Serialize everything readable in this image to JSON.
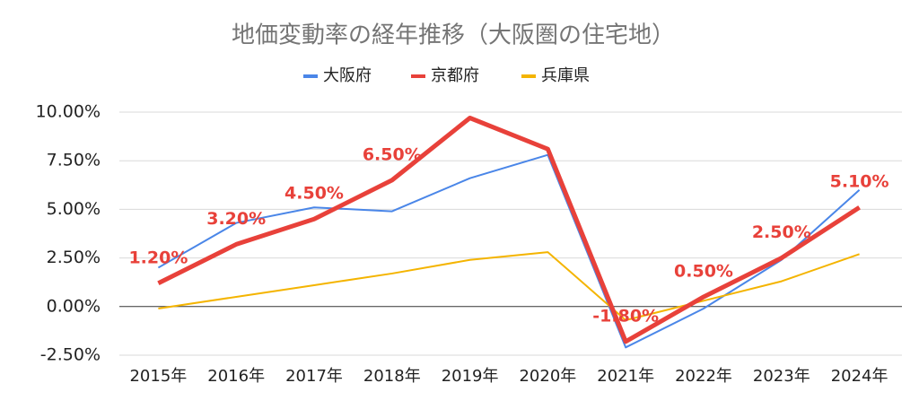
{
  "chart_data": {
    "type": "line",
    "title": "地価変動率の経年推移（大阪圏の住宅地）",
    "categories": [
      "2015年",
      "2016年",
      "2017年",
      "2018年",
      "2019年",
      "2020年",
      "2021年",
      "2022年",
      "2023年",
      "2024年"
    ],
    "series": [
      {
        "name": "大阪府",
        "color": "#4a86e8",
        "width": 2,
        "values": [
          2.0,
          4.3,
          5.1,
          4.9,
          6.6,
          7.8,
          -2.1,
          -0.1,
          2.4,
          6.0
        ]
      },
      {
        "name": "京都府",
        "color": "#e8413a",
        "width": 5,
        "values": [
          1.2,
          3.2,
          4.5,
          6.5,
          9.7,
          8.1,
          -1.8,
          0.5,
          2.5,
          5.1
        ],
        "value_labels": [
          "1.20%",
          "3.20%",
          "4.50%",
          "6.50%",
          null,
          null,
          "-1.80%",
          "0.50%",
          "2.50%",
          "5.10%"
        ]
      },
      {
        "name": "兵庫県",
        "color": "#f4b400",
        "width": 2,
        "values": [
          -0.1,
          0.5,
          1.1,
          1.7,
          2.4,
          2.8,
          -0.7,
          0.3,
          1.3,
          2.7
        ]
      }
    ],
    "ylim": [
      -2.5,
      10
    ],
    "yticks": [
      {
        "value": -2.5,
        "label": "-2.50%"
      },
      {
        "value": 0,
        "label": "0.00%"
      },
      {
        "value": 2.5,
        "label": "2.50%"
      },
      {
        "value": 5,
        "label": "5.00%"
      },
      {
        "value": 7.5,
        "label": "7.50%"
      },
      {
        "value": 10,
        "label": "10.00%"
      }
    ],
    "grid": true
  }
}
